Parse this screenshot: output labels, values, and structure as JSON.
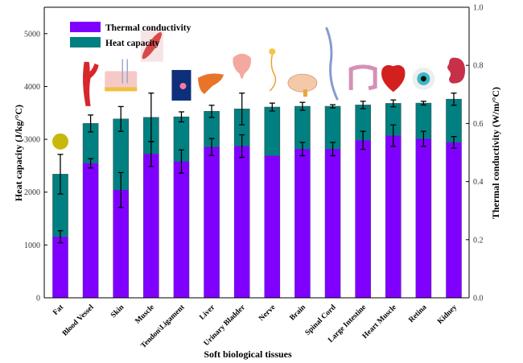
{
  "chart_data": {
    "type": "bar",
    "subtype": "overlaid-bars-dual-axis",
    "title": "",
    "xlabel": "Soft biological tissues",
    "ylabel_left": "Heat capacity (J/kg/°C)",
    "ylabel_right": "Thermal conductivity (W/m/°C)",
    "ylim_left": [
      0,
      5500
    ],
    "ylim_right": [
      0,
      1.0
    ],
    "yticks_left": [
      0,
      1000,
      2000,
      3000,
      4000,
      5000
    ],
    "yticks_right": [
      0.0,
      0.2,
      0.4,
      0.6,
      0.8,
      1.0
    ],
    "ytick_labels_right": [
      "0.0",
      "0.2",
      "0.4",
      "0.6",
      "0.8",
      "1.0"
    ],
    "grid": false,
    "legend_position": "top-left",
    "categories": [
      "Fat",
      "Blood Vessel",
      "Skin",
      "Muscle",
      "Tendon\\Ligament",
      "Liver",
      "Urinary Bladder",
      "Nerve",
      "Brain",
      "Spinal Cord",
      "Large Intestine",
      "Heart Muscle",
      "Retina",
      "Kidney"
    ],
    "category_icons": [
      "fat-droplet-icon",
      "blood-vessel-icon",
      "skin-icon",
      "muscle-icon",
      "tendon-ligament-icon",
      "liver-icon",
      "urinary-bladder-icon",
      "nerve-icon",
      "brain-icon",
      "spinal-cord-icon",
      "large-intestine-icon",
      "heart-muscle-icon",
      "retina-icon",
      "kidney-icon"
    ],
    "series": [
      {
        "name": "Heat capacity",
        "axis": "left",
        "color": "#008080",
        "values": [
          2340,
          3300,
          3385,
          3415,
          3425,
          3530,
          3575,
          3610,
          3625,
          3625,
          3650,
          3680,
          3685,
          3760
        ],
        "errors": [
          375,
          160,
          235,
          460,
          95,
          115,
          300,
          75,
          75,
          30,
          70,
          65,
          35,
          115
        ]
      },
      {
        "name": "Thermal conductivity",
        "axis": "right",
        "color": "#8000FF",
        "values": [
          0.21,
          0.463,
          0.371,
          0.495,
          0.469,
          0.519,
          0.522,
          0.489,
          0.512,
          0.512,
          0.542,
          0.558,
          0.547,
          0.535
        ],
        "errors": [
          0.021,
          0.016,
          0.06,
          0.043,
          0.04,
          0.029,
          0.039,
          null,
          0.023,
          0.023,
          0.031,
          0.037,
          0.026,
          0.02
        ]
      }
    ],
    "legend": [
      {
        "label": "Thermal conductivity",
        "color": "#8000FF"
      },
      {
        "label": "Heat capacity",
        "color": "#008080"
      }
    ]
  }
}
